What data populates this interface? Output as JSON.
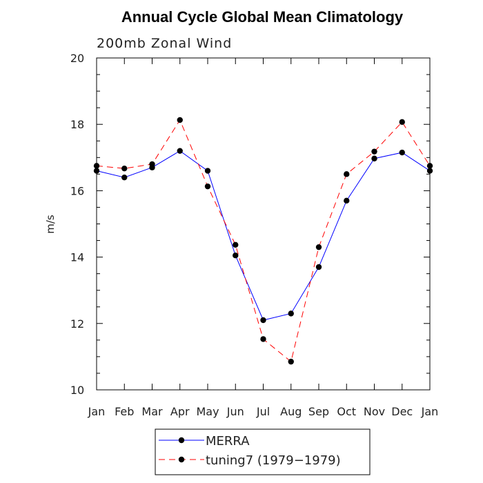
{
  "chart_data": {
    "type": "line",
    "title": "Annual Cycle Global Mean Climatology",
    "subtitle": "200mb Zonal Wind",
    "xlabel": "",
    "ylabel": "m/s",
    "categories": [
      "Jan",
      "Feb",
      "Mar",
      "Apr",
      "May",
      "Jun",
      "Jul",
      "Aug",
      "Sep",
      "Oct",
      "Nov",
      "Dec",
      "Jan"
    ],
    "ylim": [
      10,
      20
    ],
    "yticks": [
      10,
      12,
      14,
      16,
      18,
      20
    ],
    "yticks_minor_step": 0.5,
    "grid": false,
    "legend_position": "bottom-center",
    "series": [
      {
        "name": "MERRA",
        "values": [
          16.6,
          16.4,
          16.7,
          17.2,
          16.6,
          14.05,
          12.1,
          12.3,
          13.7,
          15.7,
          16.97,
          17.15,
          16.6
        ],
        "color": "#0000ff",
        "line_style": "solid",
        "marker": "filled-circle"
      },
      {
        "name": "tuning7 (1979−1979)",
        "values": [
          16.75,
          16.67,
          16.8,
          18.13,
          16.13,
          14.37,
          11.53,
          10.85,
          14.3,
          16.5,
          17.18,
          18.07,
          16.75
        ],
        "color": "#ff0000",
        "line_style": "dashed",
        "marker": "filled-circle"
      }
    ]
  }
}
